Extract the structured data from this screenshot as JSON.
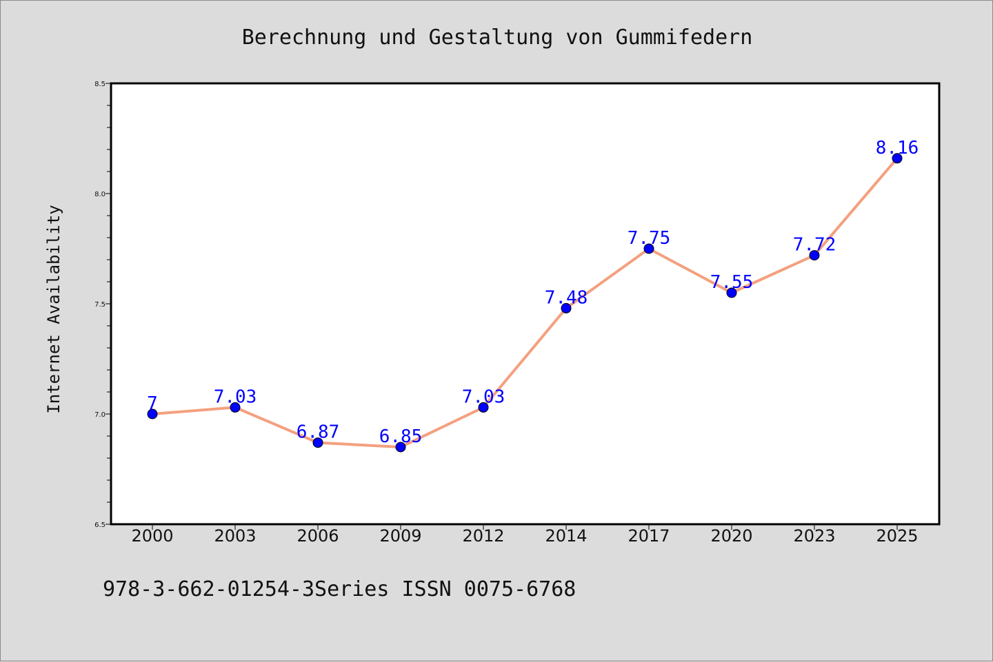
{
  "chart_data": {
    "type": "line",
    "title": "Berechnung und Gestaltung von Gummifedern",
    "xlabel": "",
    "ylabel": "Internet Availability",
    "categories": [
      "2000",
      "2003",
      "2006",
      "2009",
      "2012",
      "2014",
      "2017",
      "2020",
      "2023",
      "2025"
    ],
    "series": [
      {
        "values": [
          7,
          7.03,
          6.87,
          6.85,
          7.03,
          7.48,
          7.75,
          7.55,
          7.72,
          8.16
        ],
        "data_labels": [
          "7",
          "7.03",
          "6.87",
          "6.85",
          "7.03",
          "7.48",
          "7.75",
          "7.55",
          "7.72",
          "8.16"
        ]
      }
    ],
    "ylim": [
      6.5,
      8.5
    ],
    "yticks": [
      "6.5",
      "7.0",
      "7.5",
      "8.0",
      "8.5"
    ],
    "grid": false,
    "colors": {
      "line": "#f4a07f",
      "marker": "#0000ff",
      "label": "#0000ff"
    }
  },
  "footer": {
    "text": "978-3-662-01254-3Series ISSN 0075-6768"
  }
}
